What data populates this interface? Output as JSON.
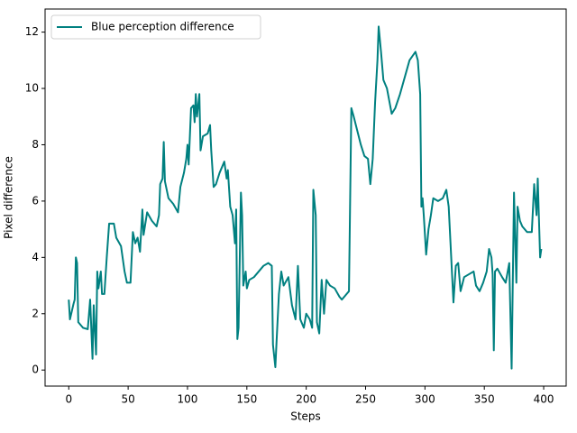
{
  "chart_data": {
    "type": "line",
    "x_label": "Steps",
    "y_label": "Pixel difference",
    "x": [
      0,
      1,
      4,
      5,
      6,
      7,
      8,
      10,
      12,
      16,
      18,
      20,
      21,
      23,
      24,
      25,
      27,
      28,
      30,
      32,
      34,
      38,
      40,
      44,
      47,
      49,
      52,
      54,
      56,
      58,
      60,
      62,
      63,
      66,
      70,
      74,
      76,
      77,
      79,
      80,
      81,
      84,
      88,
      92,
      94,
      97,
      99,
      100,
      101,
      103,
      105,
      106,
      107,
      108,
      110,
      111,
      113,
      117,
      119,
      120,
      122,
      124,
      127,
      131,
      133,
      134,
      136,
      138,
      140,
      141,
      142,
      143,
      145,
      146,
      147,
      149,
      150,
      152,
      156,
      160,
      164,
      168,
      171,
      172,
      174,
      175,
      177,
      179,
      181,
      185,
      188,
      191,
      193,
      195,
      198,
      200,
      203,
      205,
      206,
      208,
      209,
      211,
      213,
      215,
      217,
      220,
      224,
      228,
      230,
      236,
      238,
      240,
      243,
      246,
      249,
      252,
      254,
      256,
      258,
      260,
      261,
      263,
      265,
      268,
      272,
      275,
      279,
      283,
      287,
      292,
      294,
      296,
      297,
      298,
      299,
      301,
      303,
      305,
      307,
      311,
      315,
      318,
      320,
      324,
      326,
      328,
      330,
      333,
      337,
      341,
      343,
      346,
      349,
      352,
      354,
      356,
      357,
      358,
      359,
      361,
      365,
      368,
      371,
      373,
      375,
      377,
      378,
      380,
      382,
      386,
      390,
      392,
      394,
      395,
      397,
      398
    ],
    "series": [
      {
        "name": "Blue perception difference",
        "color": "#008080",
        "values": [
          2.5,
          1.8,
          2.35,
          2.5,
          4.0,
          3.8,
          1.7,
          1.6,
          1.5,
          1.45,
          2.5,
          0.4,
          2.3,
          0.55,
          3.5,
          2.9,
          3.5,
          2.7,
          2.7,
          4.0,
          5.2,
          5.2,
          4.7,
          4.4,
          3.5,
          3.1,
          3.1,
          4.9,
          4.5,
          4.7,
          4.2,
          5.7,
          4.8,
          5.6,
          5.3,
          5.1,
          5.5,
          6.6,
          6.8,
          8.1,
          6.7,
          6.1,
          5.9,
          5.6,
          6.5,
          7.0,
          7.5,
          8.0,
          7.3,
          9.3,
          9.4,
          8.8,
          9.8,
          9.0,
          9.8,
          7.8,
          8.3,
          8.4,
          8.7,
          7.8,
          6.5,
          6.6,
          7.0,
          7.4,
          6.8,
          7.1,
          5.8,
          5.5,
          4.5,
          5.7,
          1.1,
          1.5,
          6.3,
          5.5,
          3.0,
          3.5,
          2.9,
          3.2,
          3.3,
          3.5,
          3.7,
          3.8,
          3.7,
          0.9,
          0.1,
          1.0,
          2.7,
          3.5,
          3.0,
          3.3,
          2.3,
          1.8,
          3.7,
          1.8,
          1.5,
          2.0,
          1.8,
          1.5,
          6.4,
          5.5,
          1.7,
          1.3,
          3.2,
          2.0,
          3.2,
          3.0,
          2.9,
          2.6,
          2.5,
          2.8,
          9.3,
          9.0,
          8.5,
          8.0,
          7.6,
          7.5,
          6.6,
          7.5,
          9.5,
          11.0,
          12.2,
          11.3,
          10.3,
          10.0,
          9.1,
          9.3,
          9.8,
          10.4,
          11.0,
          11.3,
          11.0,
          9.8,
          5.8,
          6.1,
          5.5,
          4.1,
          5.0,
          5.5,
          6.1,
          6.0,
          6.1,
          6.4,
          5.8,
          2.4,
          3.7,
          3.8,
          2.8,
          3.3,
          3.4,
          3.5,
          3.0,
          2.8,
          3.1,
          3.5,
          4.3,
          4.0,
          3.4,
          0.7,
          3.5,
          3.6,
          3.3,
          3.1,
          3.8,
          0.05,
          6.3,
          3.1,
          5.8,
          5.3,
          5.1,
          4.9,
          4.9,
          6.6,
          5.5,
          6.8,
          4.0,
          4.3
        ]
      }
    ],
    "xlim": [
      -19.95,
      418.95
    ],
    "xticks": [
      0,
      50,
      100,
      150,
      200,
      250,
      300,
      350,
      400
    ],
    "ylim": [
      -0.57,
      12.82
    ],
    "yticks": [
      0,
      2,
      4,
      6,
      8,
      10,
      12
    ],
    "grid": false,
    "legend": "upper left"
  }
}
